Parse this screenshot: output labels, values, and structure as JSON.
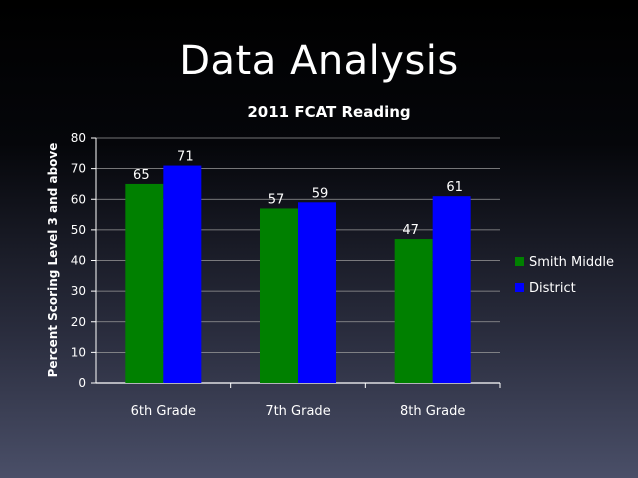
{
  "slide": {
    "title": "Data Analysis"
  },
  "chart_data": {
    "type": "bar",
    "title": "2011 FCAT Reading",
    "xlabel": "",
    "ylabel": "Percent Scoring Level 3 and above",
    "categories": [
      "6th Grade",
      "7th Grade",
      "8th Grade"
    ],
    "series": [
      {
        "name": "Smith Middle",
        "values": [
          65,
          57,
          47
        ],
        "color": "#008000"
      },
      {
        "name": "District",
        "values": [
          71,
          59,
          61
        ],
        "color": "#0000ff"
      }
    ],
    "ylim": [
      0,
      80
    ],
    "yticks": [
      0,
      10,
      20,
      30,
      40,
      50,
      60,
      70,
      80
    ],
    "grid": true,
    "legend": "right",
    "data_labels": true
  }
}
